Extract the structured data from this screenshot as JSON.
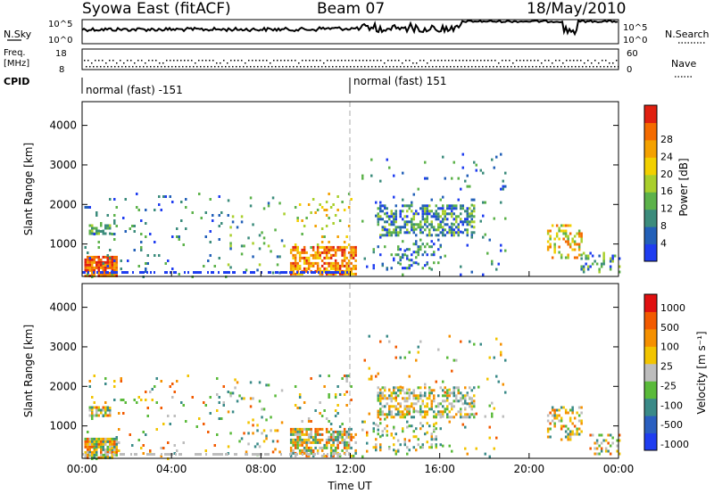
{
  "header": {
    "station": "Syowa East (fitACF)",
    "beam": "Beam 07",
    "date": "18/May/2010"
  },
  "panels": {
    "nsky_label": "N.Sky",
    "nsearch_label": "N.Search",
    "freq_label_1": "Freq.",
    "freq_label_2": "[MHz]",
    "nave_label": "Nave",
    "cpid_label": "CPID",
    "nsky_ticks": [
      "10^5",
      "10^0"
    ],
    "nsearch_ticks": [
      "10^5",
      "10^0"
    ],
    "freq_ticks": [
      "18",
      "8"
    ],
    "nave_ticks": [
      "60",
      "0"
    ],
    "cpid_segments": [
      {
        "label": "normal (fast) -151",
        "start_hour": 0
      },
      {
        "label": "normal (fast) 151",
        "start_hour": 12
      }
    ]
  },
  "chart_data": [
    {
      "type": "heatmap",
      "name": "power",
      "ylabel": "Slant Range [km]",
      "xlabel": "",
      "xlim": [
        0,
        24
      ],
      "ylim": [
        180,
        4600
      ],
      "yticks": [
        "1000",
        "2000",
        "3000",
        "4000"
      ],
      "colorbar": {
        "label": "Power [dB]",
        "ticks": [
          "4",
          "8",
          "12",
          "16",
          "20",
          "24",
          "28"
        ],
        "colors": [
          "#1f3df0",
          "#2360b8",
          "#3c8c7c",
          "#5cb24a",
          "#a9cf2c",
          "#f2d000",
          "#f4a100",
          "#f46b00",
          "#e02010"
        ]
      }
    },
    {
      "type": "heatmap",
      "name": "velocity",
      "ylabel": "Slant Range [km]",
      "xlabel": "Time UT",
      "xlim": [
        0,
        24
      ],
      "ylim": [
        180,
        4600
      ],
      "yticks": [
        "1000",
        "2000",
        "3000",
        "4000"
      ],
      "xticks": [
        "00:00",
        "04:00",
        "08:00",
        "12:00",
        "16:00",
        "20:00",
        "00:00"
      ],
      "colorbar": {
        "label": "Velocity [m s⁻¹]",
        "ticks": [
          "1000",
          "500",
          "100",
          "25",
          "-25",
          "-100",
          "-500",
          "-1000"
        ],
        "colors": [
          "#1f3df0",
          "#2a5fc0",
          "#3a8a88",
          "#5aba3a",
          "#bdbdbd",
          "#f2c400",
          "#f59000",
          "#f25a00",
          "#e01010"
        ]
      }
    }
  ]
}
